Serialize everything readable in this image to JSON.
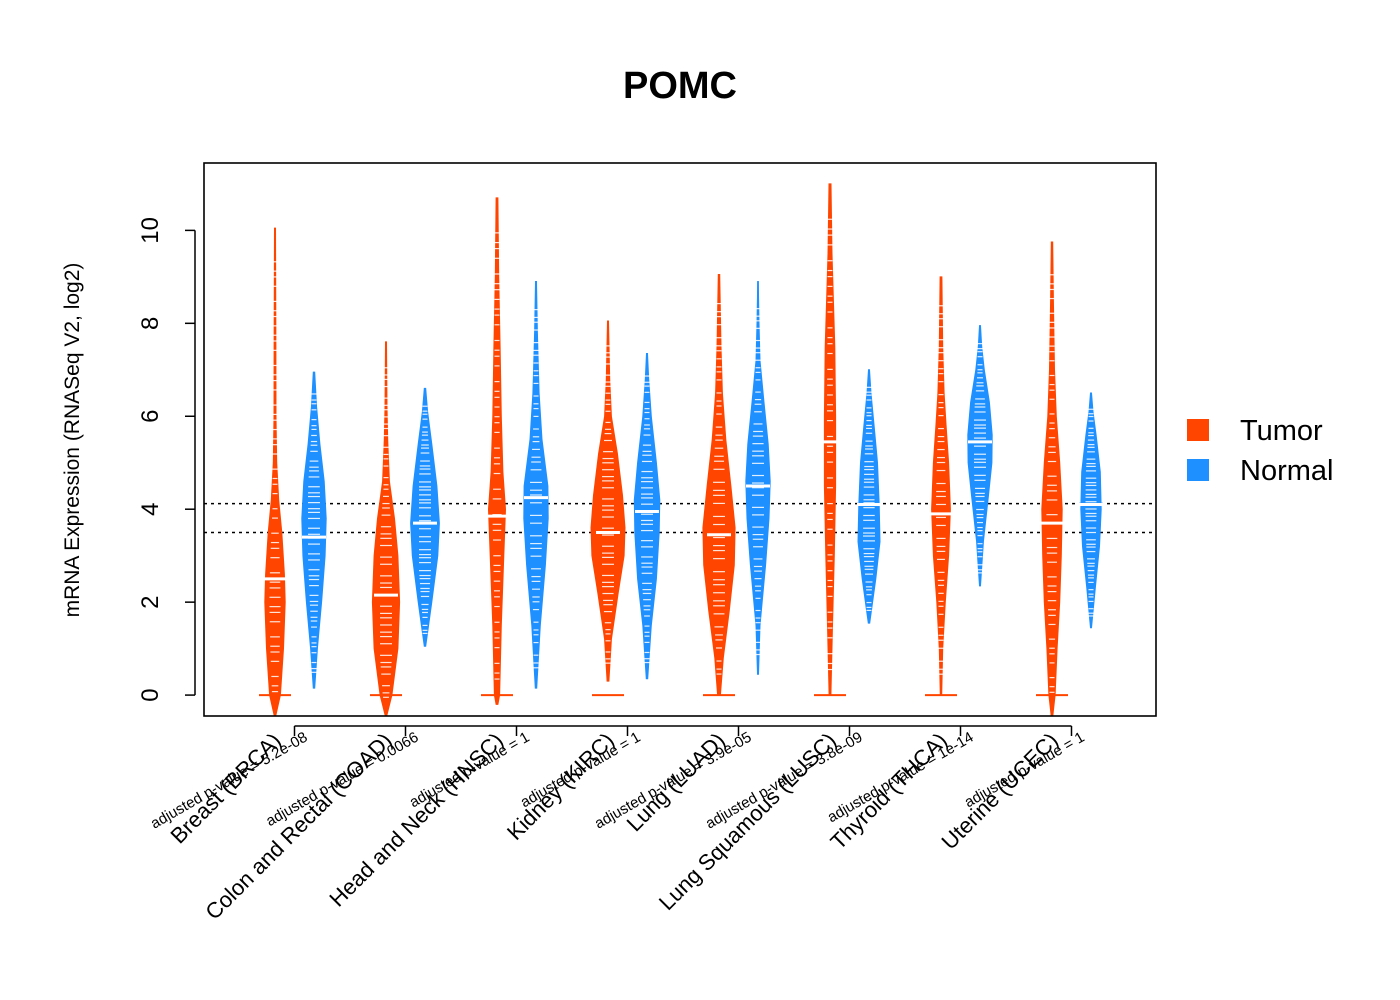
{
  "chart_data": {
    "type": "violin",
    "title": "POMC",
    "ylabel": "mRNA Expression (RNASeq V2, log2)",
    "xlabel": "",
    "ylim": [
      -0.45,
      11.45
    ],
    "yticks": [
      0,
      2,
      4,
      6,
      8,
      10
    ],
    "reference_lines": [
      4.12,
      3.5
    ],
    "legend": {
      "position": "right",
      "entries": [
        {
          "name": "Tumor",
          "color": "#FF4500"
        },
        {
          "name": "Normal",
          "color": "#1E90FF"
        }
      ]
    },
    "categories": [
      {
        "label": "Breast (BRCA)",
        "pvalue": "adjusted p-value = 5.2e-08"
      },
      {
        "label": "Colon and Rectal (COAD)",
        "pvalue": "adjusted p-value = 0.0066"
      },
      {
        "label": "Head and Neck (HNSC)",
        "pvalue": "adjusted p-value = 1"
      },
      {
        "label": "Kidney (KIRC)",
        "pvalue": "adjusted p-value = 1"
      },
      {
        "label": "Lung (LUAD)",
        "pvalue": "adjusted p-value = 3.9e-05"
      },
      {
        "label": "Lung Squamous (LUSC)",
        "pvalue": "adjusted p-value = 3.8e-09"
      },
      {
        "label": "Thyroid (THCA)",
        "pvalue": "adjusted p-value = 1e-14"
      },
      {
        "label": "Uterine (UCEC)",
        "pvalue": "adjusted p-value = 1"
      }
    ],
    "series": [
      {
        "name": "Tumor",
        "color": "#FF4500",
        "violins": [
          {
            "min": -0.45,
            "max": 10.05,
            "median": 2.5,
            "zero_marker": true,
            "profile": [
              [
                -0.45,
                0.04
              ],
              [
                0,
                0.32
              ],
              [
                1,
                0.5
              ],
              [
                2,
                0.6
              ],
              [
                2.6,
                0.55
              ],
              [
                3.5,
                0.4
              ],
              [
                4.2,
                0.22
              ],
              [
                5,
                0.1
              ],
              [
                6,
                0.06
              ],
              [
                7.5,
                0.05
              ],
              [
                10.05,
                0.03
              ]
            ]
          },
          {
            "min": -0.45,
            "max": 7.6,
            "median": 2.15,
            "zero_marker": true,
            "profile": [
              [
                -0.45,
                0.04
              ],
              [
                0,
                0.35
              ],
              [
                1,
                0.7
              ],
              [
                2,
                0.8
              ],
              [
                3,
                0.7
              ],
              [
                3.8,
                0.5
              ],
              [
                4.6,
                0.2
              ],
              [
                5.5,
                0.1
              ],
              [
                6.2,
                0.06
              ],
              [
                7.6,
                0.03
              ]
            ]
          },
          {
            "min": -0.2,
            "max": 10.7,
            "median": 3.85,
            "zero_marker": true,
            "profile": [
              [
                -0.2,
                0.05
              ],
              [
                0,
                0.15
              ],
              [
                1.5,
                0.25
              ],
              [
                3,
                0.4
              ],
              [
                4,
                0.5
              ],
              [
                4.8,
                0.35
              ],
              [
                6,
                0.25
              ],
              [
                7.5,
                0.18
              ],
              [
                9,
                0.1
              ],
              [
                10.7,
                0.05
              ]
            ]
          },
          {
            "min": 0.3,
            "max": 8.05,
            "median": 3.5,
            "zero_marker": true,
            "profile": [
              [
                0.3,
                0.05
              ],
              [
                1.2,
                0.2
              ],
              [
                2.2,
                0.6
              ],
              [
                3,
                0.95
              ],
              [
                3.6,
                1.0
              ],
              [
                4.3,
                0.85
              ],
              [
                5.2,
                0.55
              ],
              [
                6,
                0.2
              ],
              [
                6.8,
                0.1
              ],
              [
                8.05,
                0.03
              ]
            ]
          },
          {
            "min": 0.0,
            "max": 9.05,
            "median": 3.45,
            "zero_marker": true,
            "profile": [
              [
                0,
                0.08
              ],
              [
                0.8,
                0.25
              ],
              [
                1.8,
                0.6
              ],
              [
                2.8,
                0.9
              ],
              [
                3.6,
                0.95
              ],
              [
                4.5,
                0.7
              ],
              [
                5.5,
                0.4
              ],
              [
                6.5,
                0.2
              ],
              [
                7.5,
                0.12
              ],
              [
                9.05,
                0.04
              ]
            ]
          },
          {
            "min": 0.0,
            "max": 11.0,
            "median": 5.45,
            "zero_marker": true,
            "profile": [
              [
                0,
                0.05
              ],
              [
                1.5,
                0.15
              ],
              [
                3,
                0.25
              ],
              [
                4.5,
                0.33
              ],
              [
                6,
                0.33
              ],
              [
                7.5,
                0.28
              ],
              [
                8.5,
                0.2
              ],
              [
                9.5,
                0.12
              ],
              [
                11,
                0.06
              ]
            ]
          },
          {
            "min": 0.0,
            "max": 9.0,
            "median": 3.9,
            "zero_marker": true,
            "profile": [
              [
                0,
                0.04
              ],
              [
                1,
                0.1
              ],
              [
                2,
                0.25
              ],
              [
                3,
                0.45
              ],
              [
                4,
                0.55
              ],
              [
                5,
                0.45
              ],
              [
                5.8,
                0.3
              ],
              [
                6.5,
                0.18
              ],
              [
                7.5,
                0.1
              ],
              [
                9,
                0.05
              ]
            ]
          },
          {
            "min": -0.45,
            "max": 9.75,
            "median": 3.7,
            "zero_marker": true,
            "profile": [
              [
                -0.45,
                0.05
              ],
              [
                0,
                0.18
              ],
              [
                1,
                0.3
              ],
              [
                2,
                0.45
              ],
              [
                3,
                0.55
              ],
              [
                4,
                0.6
              ],
              [
                5,
                0.45
              ],
              [
                6,
                0.25
              ],
              [
                7,
                0.15
              ],
              [
                8.5,
                0.08
              ],
              [
                9.75,
                0.04
              ]
            ]
          }
        ]
      },
      {
        "name": "Normal",
        "color": "#1E90FF",
        "violins": [
          {
            "min": 0.15,
            "max": 6.95,
            "median": 3.4,
            "zero_marker": false,
            "profile": [
              [
                0.15,
                0.04
              ],
              [
                1,
                0.2
              ],
              [
                2,
                0.45
              ],
              [
                3,
                0.65
              ],
              [
                3.8,
                0.72
              ],
              [
                4.6,
                0.6
              ],
              [
                5.4,
                0.35
              ],
              [
                6.2,
                0.15
              ],
              [
                6.95,
                0.04
              ]
            ]
          },
          {
            "min": 1.05,
            "max": 6.6,
            "median": 3.7,
            "zero_marker": false,
            "profile": [
              [
                1.05,
                0.04
              ],
              [
                2,
                0.4
              ],
              [
                3,
                0.75
              ],
              [
                3.7,
                0.85
              ],
              [
                4.5,
                0.7
              ],
              [
                5.4,
                0.4
              ],
              [
                6.1,
                0.15
              ],
              [
                6.6,
                0.04
              ]
            ]
          },
          {
            "min": 0.15,
            "max": 8.9,
            "median": 4.25,
            "zero_marker": false,
            "profile": [
              [
                0.15,
                0.04
              ],
              [
                1.5,
                0.25
              ],
              [
                2.8,
                0.55
              ],
              [
                3.8,
                0.72
              ],
              [
                4.5,
                0.7
              ],
              [
                5.5,
                0.35
              ],
              [
                6.5,
                0.18
              ],
              [
                7.8,
                0.08
              ],
              [
                8.9,
                0.03
              ]
            ]
          },
          {
            "min": 0.35,
            "max": 7.35,
            "median": 3.95,
            "zero_marker": false,
            "profile": [
              [
                0.35,
                0.04
              ],
              [
                1.5,
                0.25
              ],
              [
                2.5,
                0.55
              ],
              [
                3.5,
                0.72
              ],
              [
                4.2,
                0.75
              ],
              [
                5,
                0.55
              ],
              [
                6,
                0.25
              ],
              [
                6.8,
                0.1
              ],
              [
                7.35,
                0.03
              ]
            ]
          },
          {
            "min": 0.45,
            "max": 8.9,
            "median": 4.5,
            "zero_marker": false,
            "profile": [
              [
                0.45,
                0.03
              ],
              [
                1.5,
                0.12
              ],
              [
                2.8,
                0.45
              ],
              [
                3.8,
                0.65
              ],
              [
                4.6,
                0.72
              ],
              [
                5.4,
                0.6
              ],
              [
                6.3,
                0.35
              ],
              [
                7.2,
                0.12
              ],
              [
                8,
                0.06
              ],
              [
                8.9,
                0.02
              ]
            ]
          },
          {
            "min": 1.55,
            "max": 7.0,
            "median": 4.1,
            "zero_marker": false,
            "profile": [
              [
                1.55,
                0.04
              ],
              [
                2.5,
                0.4
              ],
              [
                3.3,
                0.65
              ],
              [
                4.1,
                0.6
              ],
              [
                5,
                0.5
              ],
              [
                5.8,
                0.3
              ],
              [
                6.5,
                0.12
              ],
              [
                7,
                0.03
              ]
            ]
          },
          {
            "min": 2.35,
            "max": 7.95,
            "median": 5.45,
            "zero_marker": false,
            "profile": [
              [
                2.35,
                0.03
              ],
              [
                3.3,
                0.2
              ],
              [
                4.3,
                0.5
              ],
              [
                5,
                0.7
              ],
              [
                5.6,
                0.72
              ],
              [
                6.3,
                0.55
              ],
              [
                7,
                0.25
              ],
              [
                7.5,
                0.1
              ],
              [
                7.95,
                0.03
              ]
            ]
          },
          {
            "min": 1.45,
            "max": 6.5,
            "median": 4.1,
            "zero_marker": false,
            "profile": [
              [
                1.45,
                0.03
              ],
              [
                2.3,
                0.25
              ],
              [
                3.2,
                0.5
              ],
              [
                4,
                0.6
              ],
              [
                4.8,
                0.55
              ],
              [
                5.6,
                0.3
              ],
              [
                6.1,
                0.12
              ],
              [
                6.5,
                0.03
              ]
            ]
          }
        ]
      }
    ]
  }
}
